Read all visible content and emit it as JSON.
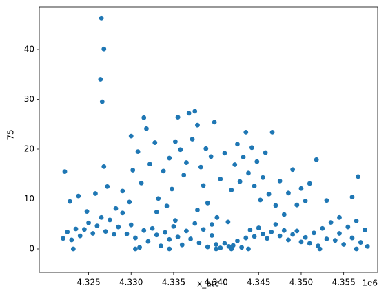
{
  "chart_data": {
    "type": "scatter",
    "x_label": "x_atc",
    "y_label": "75",
    "x_offset_label": "1e6",
    "color": "#1f77b4",
    "xlim": [
      4.3192,
      4.359
    ],
    "ylim": [
      -4.69,
      48.55
    ],
    "xticks": [
      4.325,
      {
        "value": 4.33,
        "label": "4.330"
      },
      4.335,
      {
        "value": 4.34,
        "label": "4.340"
      },
      4.345,
      {
        "value": 4.35,
        "label": "4.350"
      },
      4.355
    ],
    "yticks": [
      0,
      10,
      20,
      30,
      40
    ],
    "x": [
      4.322,
      4.3225,
      4.323,
      4.3235,
      4.324,
      4.3245,
      4.325,
      4.3255,
      4.326,
      4.3265,
      4.327,
      4.3275,
      4.328,
      4.3285,
      4.329,
      4.3295,
      4.33,
      4.3305,
      4.331,
      4.3315,
      4.332,
      4.3325,
      4.333,
      4.3335,
      4.334,
      4.3345,
      4.335,
      4.3355,
      4.336,
      4.3365,
      4.337,
      4.3375,
      4.338,
      4.3385,
      4.339,
      4.3395,
      4.34,
      4.3405,
      4.341,
      4.3415,
      4.342,
      4.3425,
      4.343,
      4.3435,
      4.344,
      4.3445,
      4.345,
      4.3455,
      4.346,
      4.3465,
      4.347,
      4.3475,
      4.348,
      4.3485,
      4.349,
      4.3495,
      4.35,
      4.3505,
      4.351,
      4.3515,
      4.352,
      4.3525,
      4.353,
      4.3535,
      4.354,
      4.3545,
      4.355,
      4.3555,
      4.356,
      4.3565,
      4.357,
      4.3575,
      4.3578,
      4.3232,
      4.3305,
      4.3345,
      4.34,
      4.3418,
      4.3438,
      4.3522,
      4.3565,
      4.3228,
      4.3222,
      4.3238,
      4.3248,
      4.3258,
      4.3272,
      4.3268,
      4.3264,
      4.3266,
      4.3265,
      4.3268,
      4.3282,
      4.329,
      4.3298,
      4.33,
      4.3302,
      4.3308,
      4.3312,
      4.3315,
      4.3318,
      4.3322,
      4.3328,
      4.3332,
      4.3338,
      4.3342,
      4.3345,
      4.3348,
      4.3352,
      4.3355,
      4.3358,
      4.3362,
      4.3365,
      4.3368,
      4.3372,
      4.3375,
      4.3378,
      4.3382,
      4.3385,
      4.3388,
      4.339,
      4.3394,
      4.3398,
      4.3401,
      4.3405,
      4.341,
      4.3414,
      4.3418,
      4.3422,
      4.3425,
      4.3428,
      4.3432,
      4.3435,
      4.3438,
      4.3442,
      4.3445,
      4.3448,
      4.3452,
      4.3455,
      4.3458,
      4.3462,
      4.3466,
      4.347,
      4.3475,
      4.348,
      4.3485,
      4.349,
      4.3495,
      4.35,
      4.3505,
      4.351,
      4.3518,
      4.353,
      4.3545,
      4.3567,
      4.356,
      4.3378,
      4.3395,
      4.3352,
      4.333
    ],
    "values": [
      2.1,
      3.4,
      1.8,
      4.0,
      2.6,
      3.9,
      5.2,
      3.1,
      4.6,
      6.3,
      3.5,
      5.8,
      2.9,
      4.4,
      7.2,
      3.0,
      4.8,
      2.2,
      0.3,
      3.7,
      1.5,
      4.1,
      2.8,
      0.6,
      3.3,
      1.9,
      4.5,
      2.4,
      0.8,
      3.6,
      2.0,
      5.1,
      1.2,
      3.9,
      0.4,
      2.7,
      0.9,
      0.2,
      1.1,
      0.5,
      0.7,
      1.6,
      0.3,
      2.2,
      3.8,
      2.5,
      4.2,
      3.0,
      2.1,
      3.4,
      4.9,
      2.6,
      3.7,
      1.8,
      2.9,
      3.6,
      1.4,
      2.3,
      1.1,
      3.2,
      0.6,
      4.1,
      2.0,
      5.3,
      1.7,
      3.1,
      0.9,
      4.4,
      2.2,
      5.6,
      1.3,
      3.8,
      0.5,
      0.0,
      0.0,
      0.0,
      0.0,
      0.0,
      0.0,
      0.0,
      0.0,
      9.5,
      15.5,
      10.6,
      7.5,
      11.1,
      12.5,
      16.5,
      34.0,
      29.5,
      46.3,
      40.1,
      8.1,
      11.6,
      9.4,
      22.6,
      15.8,
      19.5,
      13.2,
      26.3,
      24.1,
      17.0,
      21.3,
      10.1,
      15.6,
      8.6,
      18.2,
      12.0,
      21.5,
      26.4,
      19.9,
      14.8,
      17.3,
      27.2,
      22.0,
      27.6,
      24.8,
      16.4,
      12.7,
      20.1,
      9.2,
      18.5,
      25.4,
      6.3,
      14.0,
      19.2,
      5.4,
      11.8,
      16.9,
      21.0,
      13.5,
      18.4,
      23.4,
      15.2,
      20.3,
      12.6,
      17.5,
      9.8,
      14.3,
      19.3,
      11.0,
      23.4,
      8.7,
      13.6,
      6.9,
      11.2,
      15.9,
      8.8,
      12.1,
      9.6,
      13.1,
      17.9,
      9.7,
      6.3,
      14.5,
      10.4,
      7.8,
      4.9,
      5.7,
      7.4
    ]
  }
}
